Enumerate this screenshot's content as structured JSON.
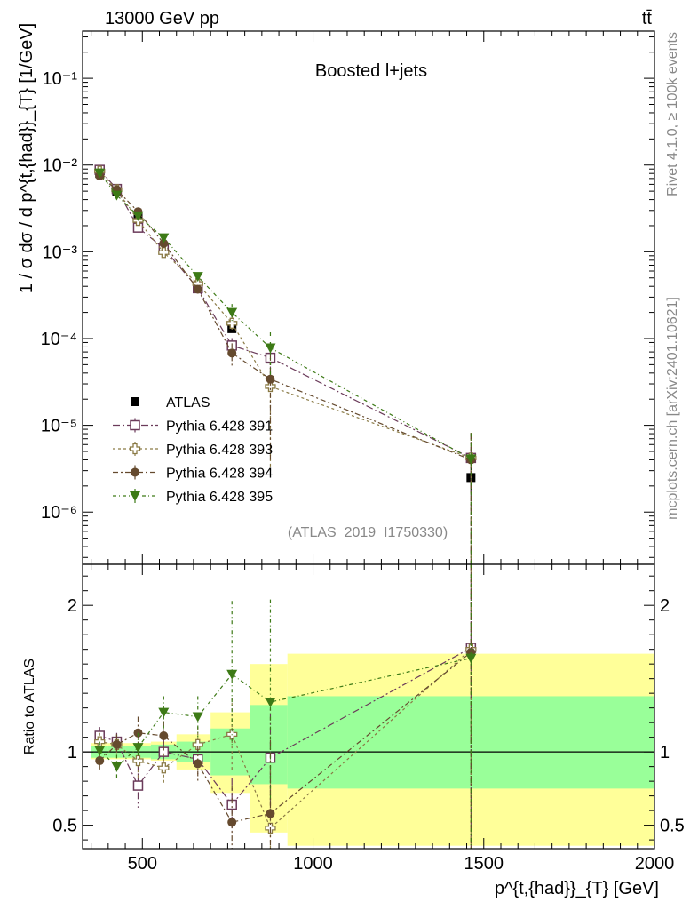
{
  "header": {
    "process": "13000 GeV pp",
    "final_state": "tt̄",
    "rivet_label": "Rivet 4.1.0, ≥ 100k events",
    "site_label": "mcplots.cern.ch [arXiv:2401.10621]",
    "analysis_id": "(ATLAS_2019_I1750330)"
  },
  "chart_data": [
    {
      "type": "line",
      "yscale": "log",
      "title": "Boosted l+jets",
      "ylabel": "1 / σ dσ / d p^{t,{had}}_{T} [1/GeV]",
      "xlim": [
        325,
        2000
      ],
      "ylim": [
        2.5e-07,
        0.35
      ],
      "yticks": [
        {
          "value": 1e-06,
          "label": "10⁻⁶"
        },
        {
          "value": 1e-05,
          "label": "10⁻⁵"
        },
        {
          "value": 0.0001,
          "label": "10⁻⁴"
        },
        {
          "value": 0.001,
          "label": "10⁻³"
        },
        {
          "value": 0.01,
          "label": "10⁻²"
        },
        {
          "value": 0.1,
          "label": "10⁻¹"
        }
      ],
      "x": [
        375,
        425,
        487.5,
        562.5,
        662.5,
        762.5,
        875,
        1462.5
      ],
      "series": [
        {
          "name": "ATLAS",
          "color": "#000000",
          "marker": "square-filled",
          "values": [
            0.008,
            0.005,
            0.0025,
            0.0011,
            0.0004,
            0.00013,
            5.8e-05,
            2.5e-06
          ],
          "errors": [
            0.0003,
            0.0002,
            0.0001,
            5e-05,
            2e-05,
            1.2e-05,
            8e-06,
            8e-07
          ]
        },
        {
          "name": "Pythia 6.428 391",
          "color": "#6b3b5a",
          "marker": "square-open",
          "dash": "8,3,2,3",
          "values": [
            0.0088,
            0.0053,
            0.0019,
            0.0011,
            0.00038,
            8.3e-05,
            6e-05,
            4.2e-06
          ],
          "errors": [
            0.0004,
            0.0003,
            0.0002,
            0.0001,
            4e-05,
            1.8e-05,
            3e-05,
            4e-06
          ]
        },
        {
          "name": "Pythia 6.428 393",
          "color": "#8a7a45",
          "marker": "plus-open",
          "dash": "3,3",
          "values": [
            0.0085,
            0.0052,
            0.0023,
            0.00098,
            0.00043,
            0.00015,
            2.8e-05,
            4.2e-06
          ],
          "errors": [
            0.0004,
            0.0003,
            0.0002,
            0.0001,
            5e-05,
            3e-05,
            2.5e-05,
            4e-06
          ]
        },
        {
          "name": "Pythia 6.428 394",
          "color": "#654a2e",
          "marker": "circle-filled",
          "dash": "6,3,2,3",
          "values": [
            0.0075,
            0.0052,
            0.0029,
            0.00125,
            0.00037,
            6.8e-05,
            3.4e-05,
            4e-06
          ],
          "errors": [
            0.0004,
            0.0003,
            0.0002,
            0.0001,
            4e-05,
            2e-05,
            3e-05,
            4e-06
          ]
        },
        {
          "name": "Pythia 6.428 395",
          "color": "#3d7a16",
          "marker": "triangle-down-filled",
          "dash": "4,3,1,3",
          "values": [
            0.0081,
            0.0045,
            0.0026,
            0.00145,
            0.00052,
            0.0002,
            7.8e-05,
            4.1e-06
          ],
          "errors": [
            0.0004,
            0.0003,
            0.0002,
            0.0001,
            5e-05,
            5e-05,
            4e-05,
            4e-06
          ]
        }
      ]
    },
    {
      "type": "line",
      "ylabel": "Ratio to ATLAS",
      "xlabel": "p^{t,{had}}_{T} [GeV]",
      "xlim": [
        325,
        2000
      ],
      "ylim": [
        0.34,
        2.28
      ],
      "xticks": [
        {
          "value": 500,
          "label": "500"
        },
        {
          "value": 1000,
          "label": "1000"
        },
        {
          "value": 1500,
          "label": "1500"
        },
        {
          "value": 2000,
          "label": "2000"
        }
      ],
      "yticks": [
        {
          "value": 0.5,
          "label": "0.5"
        },
        {
          "value": 1,
          "label": "1"
        },
        {
          "value": 2,
          "label": "2"
        }
      ],
      "bands": [
        {
          "x0": 350,
          "x1": 400,
          "inner": [
            0.96,
            1.04
          ],
          "outer": [
            0.95,
            1.06
          ]
        },
        {
          "x0": 400,
          "x1": 450,
          "inner": [
            0.96,
            1.04
          ],
          "outer": [
            0.95,
            1.06
          ]
        },
        {
          "x0": 450,
          "x1": 525,
          "inner": [
            0.96,
            1.04
          ],
          "outer": [
            0.95,
            1.06
          ]
        },
        {
          "x0": 525,
          "x1": 600,
          "inner": [
            0.95,
            1.05
          ],
          "outer": [
            0.94,
            1.07
          ]
        },
        {
          "x0": 600,
          "x1": 700,
          "inner": [
            0.93,
            1.07
          ],
          "outer": [
            0.88,
            1.12
          ]
        },
        {
          "x0": 700,
          "x1": 815,
          "inner": [
            0.84,
            1.16
          ],
          "outer": [
            0.72,
            1.27
          ]
        },
        {
          "x0": 815,
          "x1": 925,
          "inner": [
            0.78,
            1.32
          ],
          "outer": [
            0.45,
            1.6
          ]
        },
        {
          "x0": 925,
          "x1": 2000,
          "inner": [
            0.75,
            1.38
          ],
          "outer": [
            0.36,
            1.67
          ]
        }
      ],
      "x": [
        375,
        425,
        487.5,
        562.5,
        662.5,
        762.5,
        875,
        1462.5
      ],
      "series": [
        {
          "name": "Pythia 6.428 391",
          "values": [
            1.11,
            1.07,
            0.77,
            1.0,
            0.95,
            0.64,
            0.96,
            1.71
          ],
          "errors": [
            0.06,
            0.06,
            0.15,
            0.09,
            0.1,
            0.18,
            0.4,
            1.8
          ]
        },
        {
          "name": "Pythia 6.428 393",
          "values": [
            1.07,
            1.05,
            0.94,
            0.89,
            1.05,
            1.12,
            0.48,
            1.7
          ],
          "errors": [
            0.06,
            0.07,
            0.12,
            0.1,
            0.12,
            0.25,
            0.5,
            1.8
          ]
        },
        {
          "name": "Pythia 6.428 394",
          "values": [
            0.94,
            1.05,
            1.13,
            1.11,
            0.92,
            0.52,
            0.58,
            1.68
          ],
          "errors": [
            0.06,
            0.07,
            0.11,
            0.1,
            0.12,
            0.25,
            0.5,
            1.8
          ]
        },
        {
          "name": "Pythia 6.428 395",
          "values": [
            1.01,
            0.9,
            1.03,
            1.27,
            1.24,
            1.53,
            1.34,
            1.64
          ],
          "errors": [
            0.06,
            0.08,
            0.1,
            0.11,
            0.14,
            0.5,
            0.7,
            1.8
          ]
        }
      ]
    }
  ]
}
